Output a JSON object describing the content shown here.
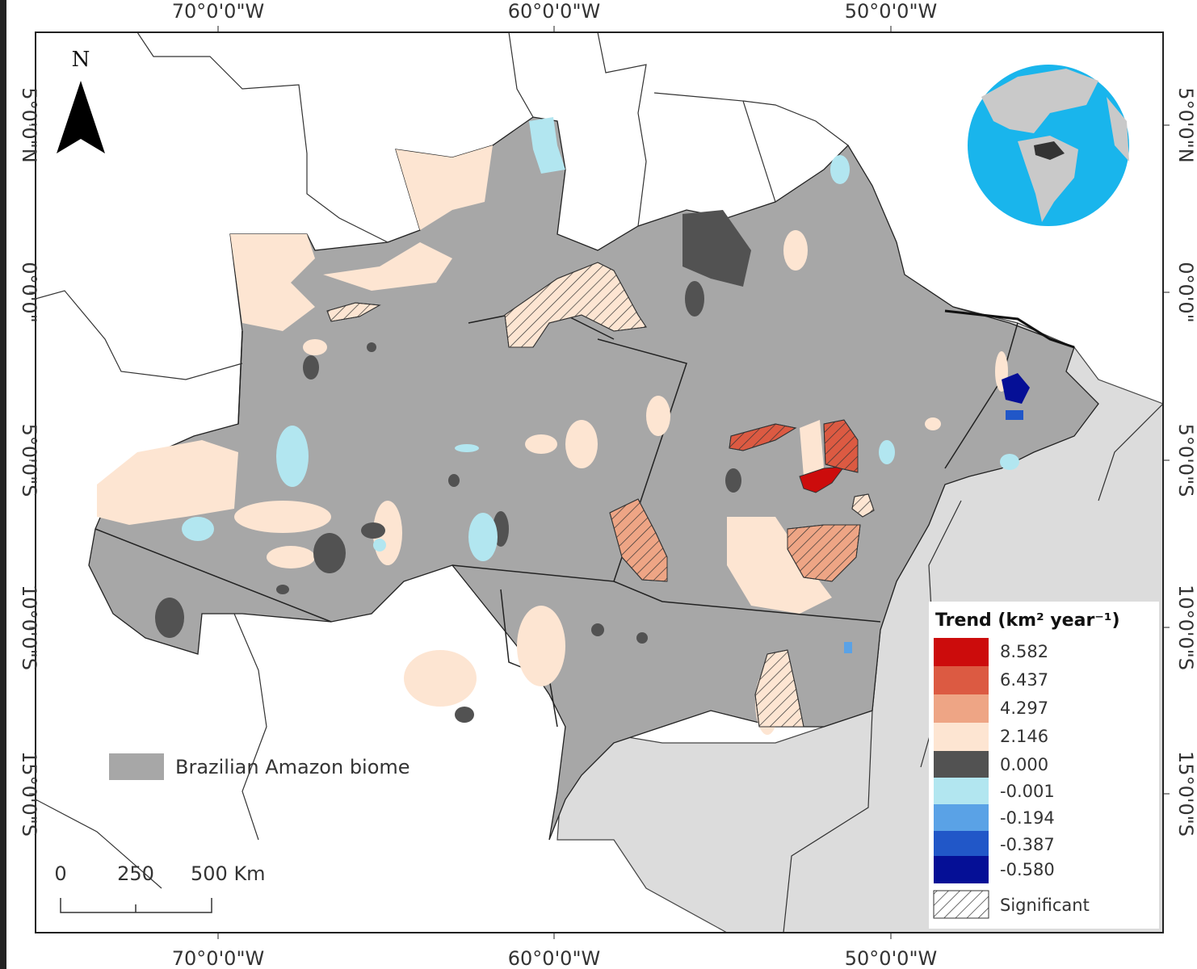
{
  "map": {
    "lon_ticks": [
      "70°0'0\"W",
      "60°0'0\"W",
      "50°0'0\"W"
    ],
    "lat_ticks": [
      "5°0'0\"N",
      "0°0'0\"",
      "5°0'0\"S",
      "10°0'0\"S",
      "15°0'0\"S"
    ],
    "north_arrow": "N",
    "biome_label": "Brazilian Amazon biome",
    "scale_bar": {
      "labels": [
        "0",
        "250",
        "500 Km"
      ]
    },
    "colors": {
      "biome": "#a7a7a7",
      "other_land": "#dcdcdc",
      "ocean_globe": "#19b5ec",
      "no_data_country": "#ffffff"
    }
  },
  "legend": {
    "title": "Trend (km² year⁻¹)",
    "classes": [
      {
        "value": "8.582",
        "color": "#cc0c0c"
      },
      {
        "value": "6.437",
        "color": "#dc5a42"
      },
      {
        "value": "4.297",
        "color": "#eea585"
      },
      {
        "value": "2.146",
        "color": "#fde5d2"
      },
      {
        "value": "0.000",
        "color": "#525252"
      },
      {
        "value": "-0.001",
        "color": "#b2e6f0"
      },
      {
        "value": "-0.194",
        "color": "#5aa2e6"
      },
      {
        "value": "-0.387",
        "color": "#2157c8"
      },
      {
        "value": "-0.580",
        "color": "#050f96"
      }
    ],
    "significant_label": "Significant"
  }
}
